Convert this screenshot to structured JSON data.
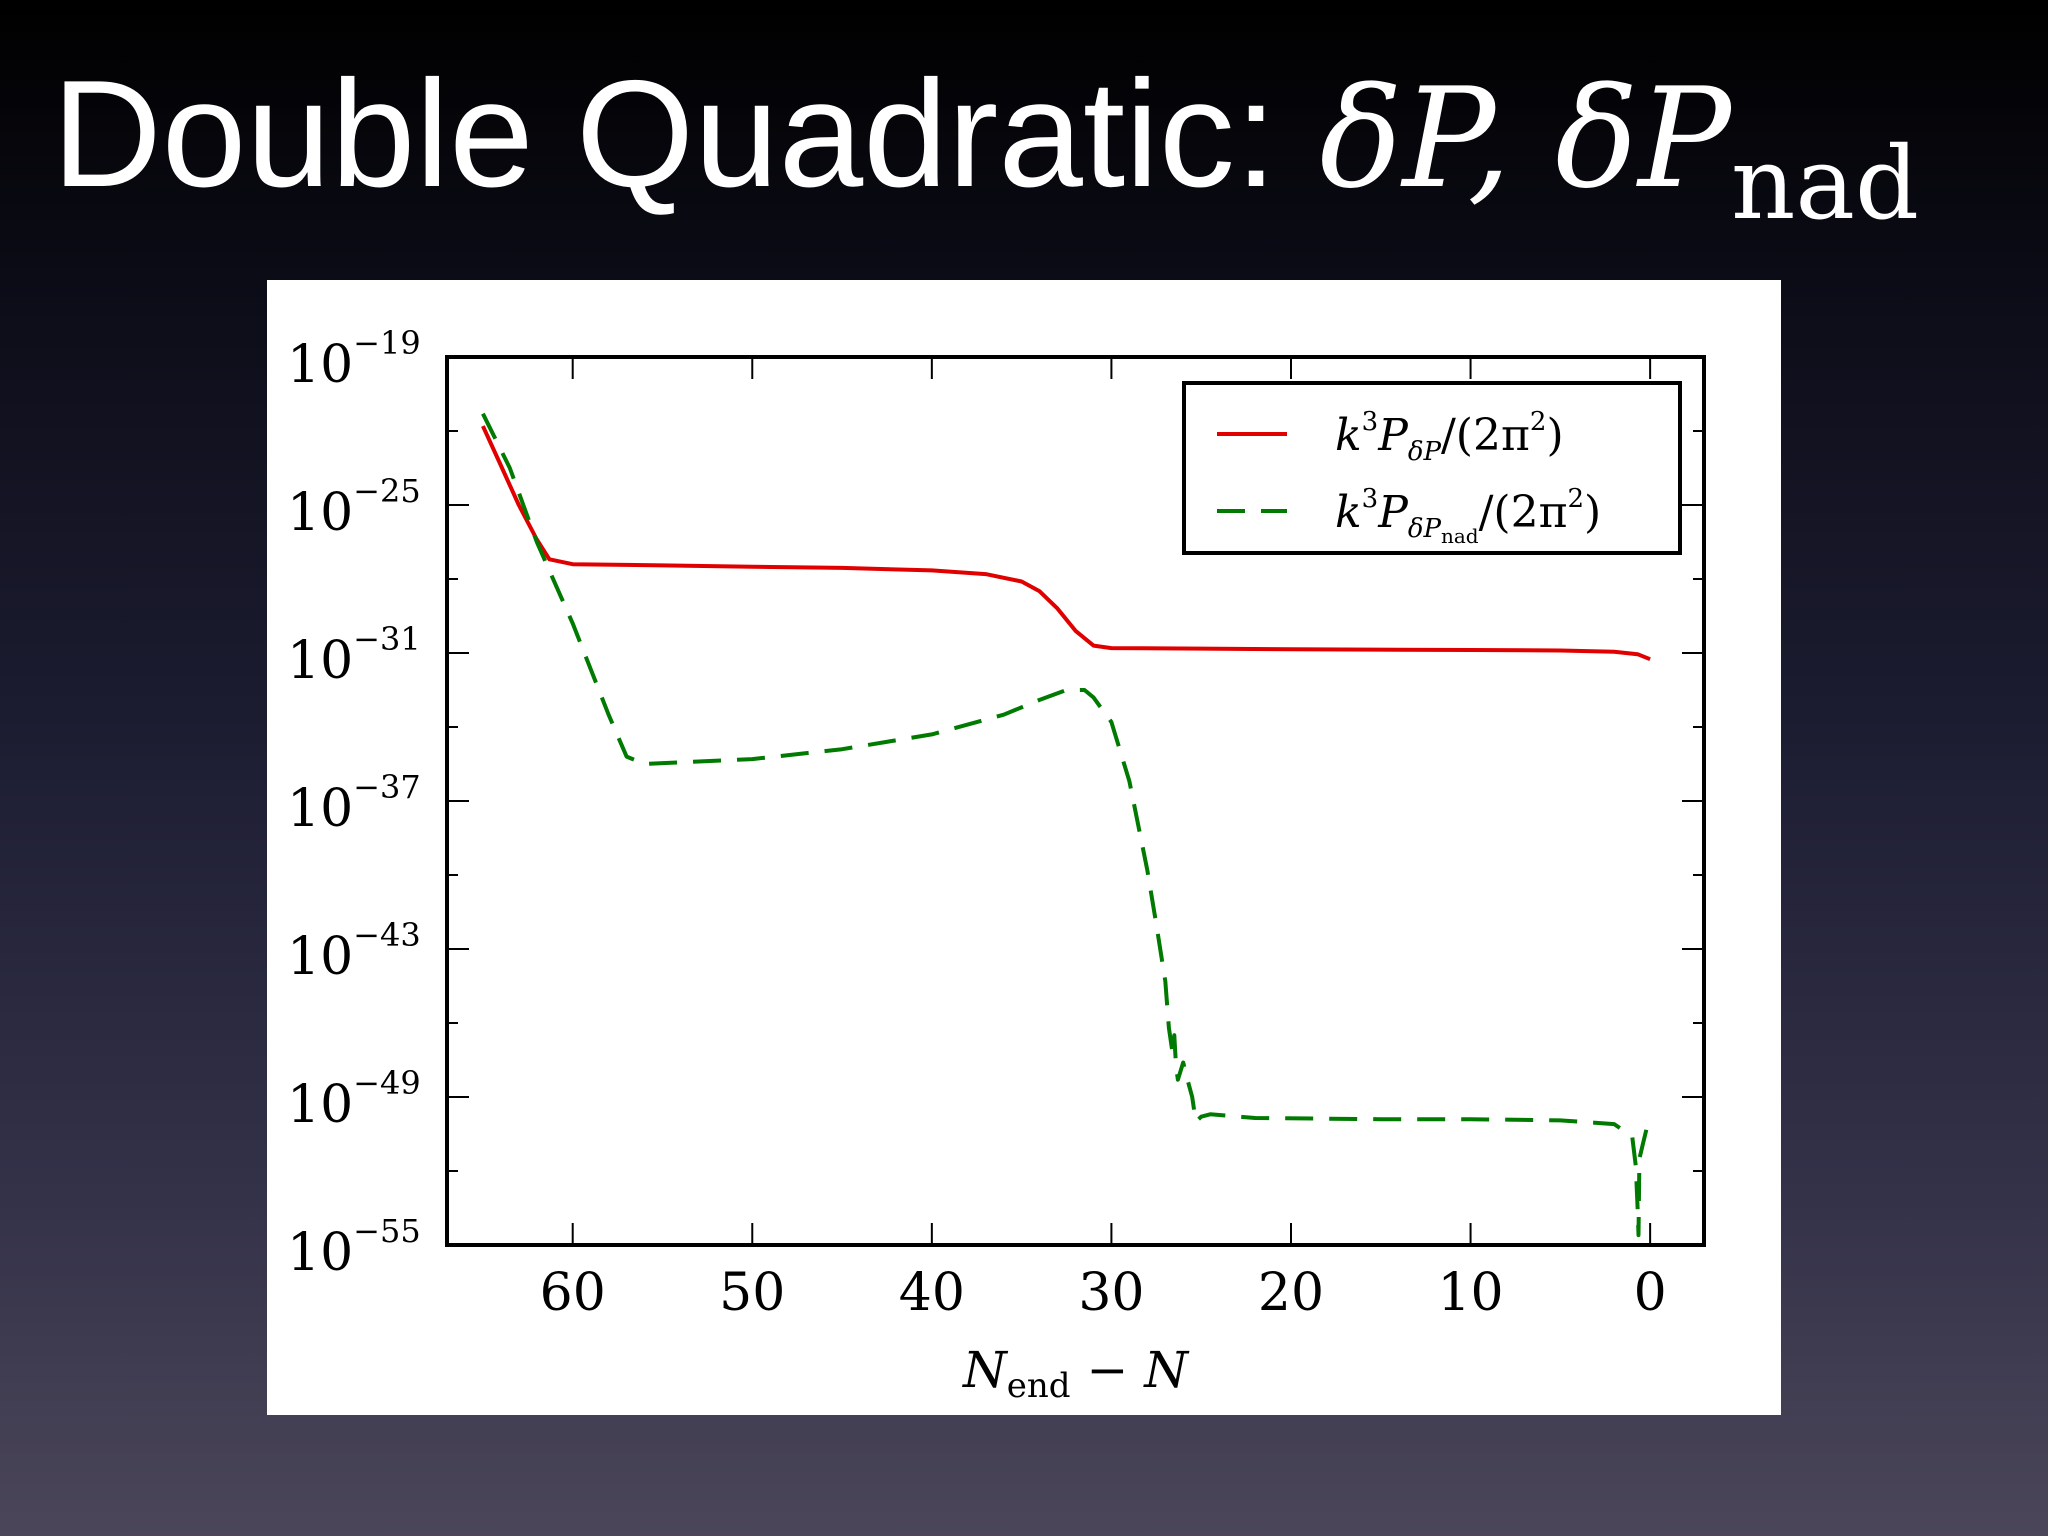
{
  "slide": {
    "title_text": "Double Quadratic: ",
    "title_math_main": "δP, δP",
    "title_math_sub": "nad"
  },
  "chart_data": {
    "type": "line",
    "x_axis": {
      "label_main": "N",
      "label_sub": "end",
      "label_tail": " − N",
      "lim": [
        67,
        -3
      ],
      "ticks": [
        60,
        50,
        40,
        30,
        20,
        10,
        0
      ],
      "tick_labels": [
        "60",
        "50",
        "40",
        "30",
        "20",
        "10",
        "0"
      ]
    },
    "y_axis": {
      "scale": "log",
      "lim_exponent": [
        -55,
        -19
      ],
      "ticks_exponent": [
        -55,
        -49,
        -43,
        -37,
        -31,
        -25,
        -19
      ],
      "tick_base": "10",
      "tick_exponent_labels": [
        "−55",
        "−49",
        "−43",
        "−37",
        "−31",
        "−25",
        "−19"
      ]
    },
    "legend": {
      "placement": "top-right",
      "entries": [
        {
          "series": 0,
          "prefix": "k",
          "sup1": "3",
          "P": "P",
          "sub": "δP",
          "sub2": "",
          "suffix": "/(2π",
          "sup2": "2",
          "close": ")"
        },
        {
          "series": 1,
          "prefix": "k",
          "sup1": "3",
          "P": "P",
          "sub": "δP",
          "sub2": "nad",
          "suffix": "/(2π",
          "sup2": "2",
          "close": ")"
        }
      ]
    },
    "series": [
      {
        "name": "k^3 P_δP/(2π^2)",
        "color": "#e00000",
        "style": "solid",
        "points_log10": [
          [
            65,
            -21.8
          ],
          [
            64,
            -23.4
          ],
          [
            63,
            -25.0
          ],
          [
            62,
            -26.4
          ],
          [
            61.3,
            -27.2
          ],
          [
            60,
            -27.4
          ],
          [
            55,
            -27.45
          ],
          [
            50,
            -27.5
          ],
          [
            45,
            -27.55
          ],
          [
            40,
            -27.65
          ],
          [
            37,
            -27.8
          ],
          [
            35,
            -28.1
          ],
          [
            34,
            -28.5
          ],
          [
            33,
            -29.2
          ],
          [
            32,
            -30.1
          ],
          [
            31,
            -30.7
          ],
          [
            30,
            -30.8
          ],
          [
            25,
            -30.82
          ],
          [
            20,
            -30.85
          ],
          [
            10,
            -30.88
          ],
          [
            5,
            -30.9
          ],
          [
            2,
            -30.95
          ],
          [
            0.7,
            -31.05
          ],
          [
            0,
            -31.25
          ]
        ]
      },
      {
        "name": "k^3 P_δP_nad/(2π^2)",
        "color": "#007a00",
        "style": "dashed",
        "points_log10": [
          [
            65,
            -21.3
          ],
          [
            63.5,
            -23.5
          ],
          [
            62,
            -26.5
          ],
          [
            60,
            -29.8
          ],
          [
            58,
            -33.5
          ],
          [
            57,
            -35.2
          ],
          [
            56,
            -35.5
          ],
          [
            50,
            -35.3
          ],
          [
            45,
            -34.9
          ],
          [
            40,
            -34.3
          ],
          [
            36,
            -33.5
          ],
          [
            34,
            -32.9
          ],
          [
            32.5,
            -32.5
          ],
          [
            31.5,
            -32.5
          ],
          [
            31,
            -32.8
          ],
          [
            30,
            -33.8
          ],
          [
            29,
            -36.2
          ],
          [
            28,
            -39.8
          ],
          [
            27.5,
            -42.0
          ],
          [
            27,
            -44.3
          ],
          [
            26.8,
            -46.2
          ],
          [
            26.6,
            -47.2
          ],
          [
            26.5,
            -46.5
          ],
          [
            26.4,
            -47.8
          ],
          [
            26.3,
            -48.3
          ],
          [
            26,
            -47.6
          ],
          [
            25.8,
            -48.2
          ],
          [
            25.5,
            -49.0
          ],
          [
            25.3,
            -50.0
          ],
          [
            25,
            -49.8
          ],
          [
            24.5,
            -49.7
          ],
          [
            22,
            -49.85
          ],
          [
            15,
            -49.9
          ],
          [
            10,
            -49.9
          ],
          [
            5,
            -49.95
          ],
          [
            2,
            -50.1
          ],
          [
            1,
            -50.6
          ],
          [
            0.8,
            -51.8
          ],
          [
            0.7,
            -53.5
          ],
          [
            0.65,
            -54.6
          ],
          [
            0.6,
            -51.5
          ],
          [
            0.4,
            -50.9
          ],
          [
            0,
            -49.7
          ]
        ]
      }
    ]
  }
}
